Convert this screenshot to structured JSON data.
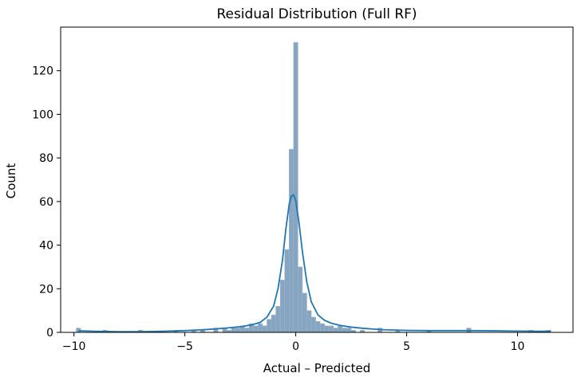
{
  "chart_data": {
    "type": "histogram",
    "title": "Residual Distribution (Full RF)",
    "xlabel": "Actual – Predicted",
    "ylabel": "Count",
    "xlim": [
      -10.6,
      12.5
    ],
    "ylim": [
      0,
      140
    ],
    "xticks": [
      -10,
      -5,
      0,
      5,
      10
    ],
    "yticks": [
      0,
      20,
      40,
      60,
      80,
      100,
      120
    ],
    "bin_width": 0.2,
    "bins": [
      {
        "x": -9.8,
        "count": 2
      },
      {
        "x": -8.6,
        "count": 1
      },
      {
        "x": -7.0,
        "count": 1
      },
      {
        "x": -5.4,
        "count": 1
      },
      {
        "x": -4.6,
        "count": 1
      },
      {
        "x": -4.2,
        "count": 1
      },
      {
        "x": -3.6,
        "count": 2
      },
      {
        "x": -3.2,
        "count": 2
      },
      {
        "x": -3.0,
        "count": 1
      },
      {
        "x": -2.8,
        "count": 2
      },
      {
        "x": -2.6,
        "count": 2
      },
      {
        "x": -2.4,
        "count": 3
      },
      {
        "x": -2.2,
        "count": 2
      },
      {
        "x": -2.0,
        "count": 4
      },
      {
        "x": -1.8,
        "count": 3
      },
      {
        "x": -1.6,
        "count": 4
      },
      {
        "x": -1.4,
        "count": 3
      },
      {
        "x": -1.2,
        "count": 6
      },
      {
        "x": -1.0,
        "count": 8
      },
      {
        "x": -0.8,
        "count": 12
      },
      {
        "x": -0.6,
        "count": 24
      },
      {
        "x": -0.4,
        "count": 38
      },
      {
        "x": -0.2,
        "count": 84
      },
      {
        "x": 0.0,
        "count": 133
      },
      {
        "x": 0.2,
        "count": 30
      },
      {
        "x": 0.4,
        "count": 18
      },
      {
        "x": 0.6,
        "count": 10
      },
      {
        "x": 0.8,
        "count": 7
      },
      {
        "x": 1.0,
        "count": 5
      },
      {
        "x": 1.2,
        "count": 4
      },
      {
        "x": 1.4,
        "count": 3
      },
      {
        "x": 1.6,
        "count": 3
      },
      {
        "x": 1.8,
        "count": 2
      },
      {
        "x": 2.0,
        "count": 3
      },
      {
        "x": 2.2,
        "count": 2
      },
      {
        "x": 2.4,
        "count": 2
      },
      {
        "x": 2.6,
        "count": 1
      },
      {
        "x": 3.0,
        "count": 1
      },
      {
        "x": 3.8,
        "count": 2
      },
      {
        "x": 4.6,
        "count": 1
      },
      {
        "x": 6.0,
        "count": 1
      },
      {
        "x": 7.8,
        "count": 2
      },
      {
        "x": 10.6,
        "count": 1
      },
      {
        "x": 11.4,
        "count": 1
      }
    ],
    "kde_curve": [
      {
        "x": -9.8,
        "y": 0.7
      },
      {
        "x": -9.0,
        "y": 0.5
      },
      {
        "x": -8.0,
        "y": 0.3
      },
      {
        "x": -7.0,
        "y": 0.3
      },
      {
        "x": -6.0,
        "y": 0.5
      },
      {
        "x": -5.0,
        "y": 0.8
      },
      {
        "x": -4.0,
        "y": 1.3
      },
      {
        "x": -3.5,
        "y": 1.7
      },
      {
        "x": -3.0,
        "y": 2.1
      },
      {
        "x": -2.5,
        "y": 2.6
      },
      {
        "x": -2.0,
        "y": 3.4
      },
      {
        "x": -1.6,
        "y": 4.6
      },
      {
        "x": -1.3,
        "y": 7.0
      },
      {
        "x": -1.0,
        "y": 12.0
      },
      {
        "x": -0.8,
        "y": 20.0
      },
      {
        "x": -0.6,
        "y": 33.0
      },
      {
        "x": -0.45,
        "y": 47.0
      },
      {
        "x": -0.3,
        "y": 58.5
      },
      {
        "x": -0.2,
        "y": 62.5
      },
      {
        "x": -0.1,
        "y": 63.0
      },
      {
        "x": 0.0,
        "y": 60.5
      },
      {
        "x": 0.15,
        "y": 50.0
      },
      {
        "x": 0.3,
        "y": 37.0
      },
      {
        "x": 0.5,
        "y": 23.0
      },
      {
        "x": 0.7,
        "y": 14.0
      },
      {
        "x": 1.0,
        "y": 8.0
      },
      {
        "x": 1.3,
        "y": 5.5
      },
      {
        "x": 1.6,
        "y": 4.2
      },
      {
        "x": 2.0,
        "y": 3.2
      },
      {
        "x": 2.5,
        "y": 2.4
      },
      {
        "x": 3.0,
        "y": 1.9
      },
      {
        "x": 3.5,
        "y": 1.5
      },
      {
        "x": 4.0,
        "y": 1.2
      },
      {
        "x": 5.0,
        "y": 0.9
      },
      {
        "x": 6.0,
        "y": 0.8
      },
      {
        "x": 7.0,
        "y": 0.8
      },
      {
        "x": 8.0,
        "y": 0.8
      },
      {
        "x": 9.0,
        "y": 0.7
      },
      {
        "x": 10.0,
        "y": 0.6
      },
      {
        "x": 11.0,
        "y": 0.5
      },
      {
        "x": 11.5,
        "y": 0.5
      }
    ],
    "bar_color": "#5e87ac",
    "bar_edge_color": "#9fb7cf",
    "kde_color": "#1f77b4",
    "grid": false,
    "legend": "none"
  }
}
